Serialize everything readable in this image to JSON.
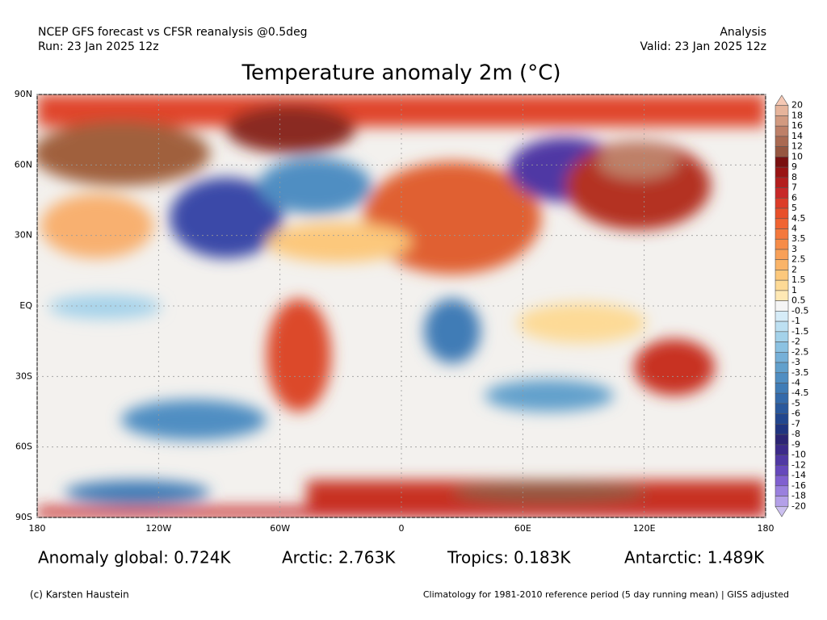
{
  "header": {
    "line1": "NCEP GFS forecast vs CFSR reanalysis @0.5deg",
    "line2": "Run: 23 Jan 2025 12z",
    "right1": "Analysis",
    "right2": "Valid: 23 Jan 2025 12z"
  },
  "title": "Temperature anomaly 2m (°C)",
  "map": {
    "lonlim": [
      -180,
      180
    ],
    "latlim": [
      -90,
      90
    ],
    "lon_ticks": [
      {
        "value": -180,
        "label": "180"
      },
      {
        "value": -120,
        "label": "120W"
      },
      {
        "value": -60,
        "label": "60W"
      },
      0,
      {
        "value": 60,
        "label": "60E"
      },
      {
        "value": 120,
        "label": "120E"
      },
      180
    ],
    "lat_ticks": [
      {
        "value": 90,
        "label": "90N"
      },
      {
        "value": 60,
        "label": "60N"
      },
      {
        "value": 30,
        "label": "30N"
      },
      {
        "value": 0,
        "label": "EQ"
      },
      {
        "value": -30,
        "label": "30S"
      },
      {
        "value": -60,
        "label": "60S"
      },
      {
        "value": -90,
        "label": "90S"
      }
    ]
  },
  "colorbar": {
    "labels": [
      "20",
      "18",
      "16",
      "14",
      "12",
      "10",
      "9",
      "8",
      "7",
      "6",
      "5",
      "4.5",
      "4",
      "3.5",
      "3",
      "2.5",
      "2",
      "1.5",
      "1",
      "0.5",
      "-0.5",
      "-1",
      "-1.5",
      "-2",
      "-2.5",
      "-3",
      "-3.5",
      "-4",
      "-4.5",
      "-5",
      "-6",
      "-7",
      "-8",
      "-9",
      "-10",
      "-12",
      "-14",
      "-16",
      "-18",
      "-20"
    ],
    "colors": [
      "#f5c8b4",
      "#e6b49b",
      "#d29a80",
      "#be8068",
      "#aa6a52",
      "#965640",
      "#7a1010",
      "#9a1414",
      "#b41e1e",
      "#c82828",
      "#dc3c28",
      "#e8502a",
      "#f06432",
      "#f4783c",
      "#f68c48",
      "#f8a058",
      "#fab468",
      "#fcc87c",
      "#fdda96",
      "#fee8b4",
      "#f5f5f5",
      "#d6ecf8",
      "#bde0f2",
      "#a4d2ea",
      "#8cc2e2",
      "#76b0d8",
      "#62a0cc",
      "#508ec2",
      "#407cb6",
      "#346aaa",
      "#2a589c",
      "#22468e",
      "#203480",
      "#2c2474",
      "#3c2a8a",
      "#5038a4",
      "#6648bc",
      "#8060d0",
      "#9a80de",
      "#b4a0e8",
      "#ccc0f0"
    ]
  },
  "stats": [
    "Anomaly global: 0.724K",
    "Arctic: 2.763K",
    "Tropics: 0.183K",
    "Antarctic: 1.489K"
  ],
  "footer": {
    "left": "(c) Karsten Haustein",
    "right": "Climatology for 1981-2010 reference period (5 day running mean) | GISS adjusted"
  }
}
